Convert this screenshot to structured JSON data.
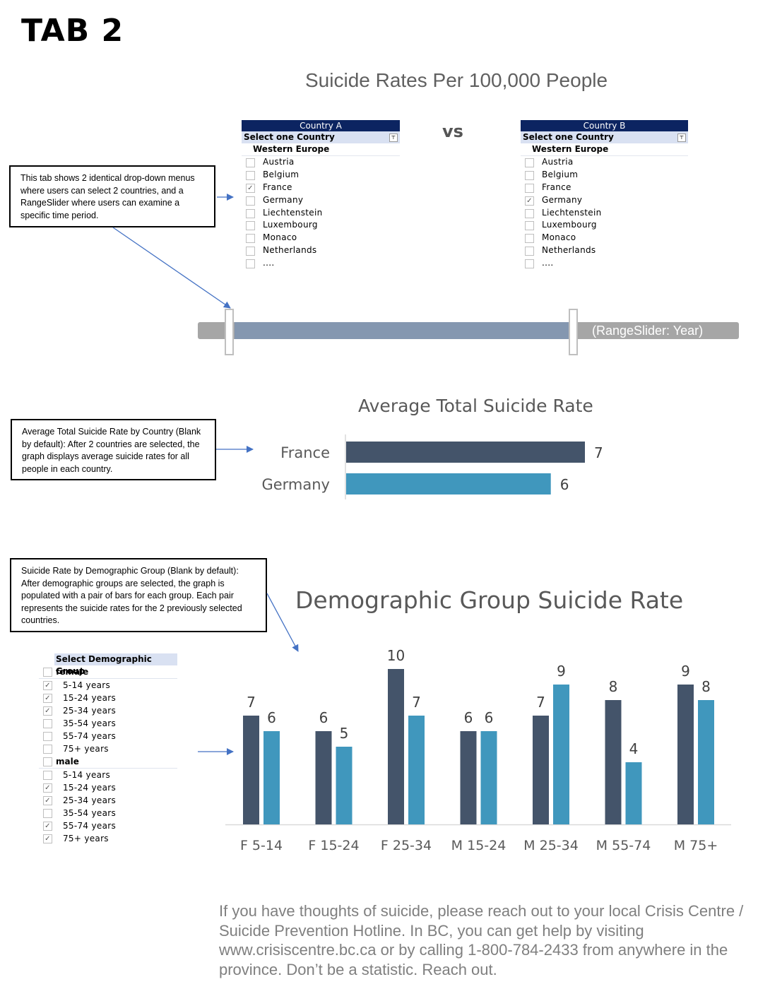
{
  "page": {
    "tab_title": "TAB 2",
    "main_title": "Suicide Rates Per 100,000 People",
    "vs_label": "vs"
  },
  "slicer_a": {
    "header": "Country A",
    "subheader": "Select one Country",
    "group": "Western Europe",
    "items": [
      {
        "label": "Austria",
        "checked": false
      },
      {
        "label": "Belgium",
        "checked": false
      },
      {
        "label": "France",
        "checked": true
      },
      {
        "label": "Germany",
        "checked": false
      },
      {
        "label": "Liechtenstein",
        "checked": false
      },
      {
        "label": "Luxembourg",
        "checked": false
      },
      {
        "label": "Monaco",
        "checked": false
      },
      {
        "label": "Netherlands",
        "checked": false
      },
      {
        "label": "....",
        "checked": false
      }
    ]
  },
  "slicer_b": {
    "header": "Country B",
    "subheader": "Select one Country",
    "group": "Western Europe",
    "items": [
      {
        "label": "Austria",
        "checked": false
      },
      {
        "label": "Belgium",
        "checked": false
      },
      {
        "label": "France",
        "checked": false
      },
      {
        "label": "Germany",
        "checked": true
      },
      {
        "label": "Liechtenstein",
        "checked": false
      },
      {
        "label": "Luxembourg",
        "checked": false
      },
      {
        "label": "Monaco",
        "checked": false
      },
      {
        "label": "Netherlands",
        "checked": false
      },
      {
        "label": "....",
        "checked": false
      }
    ]
  },
  "callouts": {
    "countries": "This tab shows 2 identical drop-down menus where users can select 2 countries, and a RangeSlider where users can examine a specific time period.",
    "avg": "Average Total Suicide Rate by Country (Blank by default): After 2 countries are selected, the graph displays average suicide rates for all people in each country.",
    "demo": "Suicide Rate by Demographic Group (Blank by default): After demographic groups are selected, the graph is populated with a pair of bars for each group. Each pair represents the suicide rates for the 2 previously selected countries."
  },
  "range_slider": {
    "label": "(RangeSlider: Year)",
    "selected_start_fraction": 0.07,
    "selected_end_fraction": 0.69
  },
  "demo_slicer": {
    "header": "Select Demographic Group",
    "groups": [
      {
        "label": "female",
        "checked": false,
        "items": [
          {
            "label": "5-14 years",
            "checked": true
          },
          {
            "label": "15-24 years",
            "checked": true
          },
          {
            "label": "25-34 years",
            "checked": true
          },
          {
            "label": "35-54 years",
            "checked": false
          },
          {
            "label": "55-74 years",
            "checked": false
          },
          {
            "label": "75+ years",
            "checked": false
          }
        ]
      },
      {
        "label": "male",
        "checked": false,
        "items": [
          {
            "label": "5-14 years",
            "checked": false
          },
          {
            "label": "15-24 years",
            "checked": true
          },
          {
            "label": "25-34 years",
            "checked": true
          },
          {
            "label": "35-54 years",
            "checked": false
          },
          {
            "label": "55-74 years",
            "checked": true
          },
          {
            "label": "75+ years",
            "checked": true
          }
        ]
      }
    ]
  },
  "colors": {
    "dark_bar": "#44546a",
    "light_bar": "#4097bd",
    "slicer_header": "#0c2461",
    "slicer_sub": "#d9e1f2",
    "arrow": "#4472c4"
  },
  "footer": "If you have thoughts of suicide, please reach out to your local Crisis Centre / Suicide Prevention Hotline. In BC, you can get help by visiting www.crisiscentre.bc.ca or by calling 1-800-784-2433 from anywhere in the province. Don’t be a statistic. Reach out.",
  "chart_data": [
    {
      "type": "bar",
      "orientation": "horizontal",
      "title": "Average Total Suicide Rate",
      "categories": [
        "France",
        "Germany"
      ],
      "values": [
        7,
        6
      ],
      "xlim": [
        0,
        7
      ]
    },
    {
      "type": "bar",
      "title": "Demographic Group Suicide Rate",
      "categories": [
        "F 5-14",
        "F 15-24",
        "F 25-34",
        "M 15-24",
        "M 25-34",
        "M 55-74",
        "M 75+"
      ],
      "series": [
        {
          "values": [
            7,
            6,
            10,
            6,
            7,
            8,
            9
          ]
        },
        {
          "values": [
            6,
            5,
            7,
            6,
            9,
            4,
            8
          ]
        }
      ],
      "ylim": [
        0,
        10
      ]
    }
  ]
}
